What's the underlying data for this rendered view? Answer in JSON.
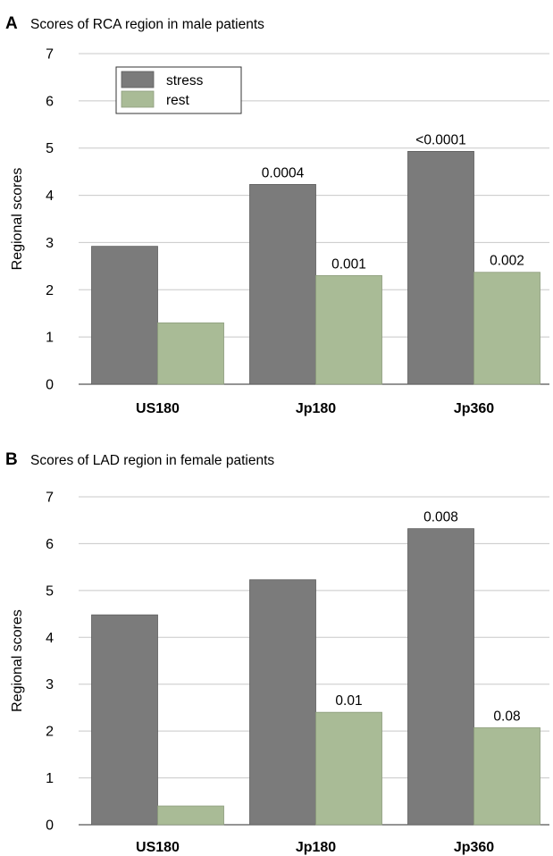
{
  "chart_data": [
    {
      "type": "bar",
      "panel": "A",
      "title": "Scores of RCA region in male patients",
      "ylabel": "Regional scores",
      "xlabel": "",
      "ylim": [
        0,
        7
      ],
      "yticks": [
        0,
        1,
        2,
        3,
        4,
        5,
        6,
        7
      ],
      "grid": true,
      "legend_position": "top-left",
      "categories": [
        "US180",
        "Jp180",
        "Jp360"
      ],
      "series": [
        {
          "name": "stress",
          "color": "#7b7b7b",
          "values": [
            2.92,
            4.23,
            4.93
          ],
          "labels": [
            "",
            "0.0004",
            "<0.0001"
          ]
        },
        {
          "name": "rest",
          "color": "#a9bb96",
          "values": [
            1.3,
            2.3,
            2.37
          ],
          "labels": [
            "",
            "0.001",
            "0.002"
          ]
        }
      ]
    },
    {
      "type": "bar",
      "panel": "B",
      "title": "Scores of LAD region in female patients",
      "ylabel": "Regional scores",
      "xlabel": "",
      "ylim": [
        0,
        7
      ],
      "yticks": [
        0,
        1,
        2,
        3,
        4,
        5,
        6,
        7
      ],
      "grid": true,
      "legend_position": "none",
      "categories": [
        "US180",
        "Jp180",
        "Jp360"
      ],
      "series": [
        {
          "name": "stress",
          "color": "#7b7b7b",
          "values": [
            4.48,
            5.23,
            6.32
          ],
          "labels": [
            "",
            "",
            "0.008"
          ]
        },
        {
          "name": "rest",
          "color": "#a9bb96",
          "values": [
            0.4,
            2.4,
            2.07
          ],
          "labels": [
            "",
            "0.01",
            "0.08"
          ]
        }
      ]
    }
  ]
}
